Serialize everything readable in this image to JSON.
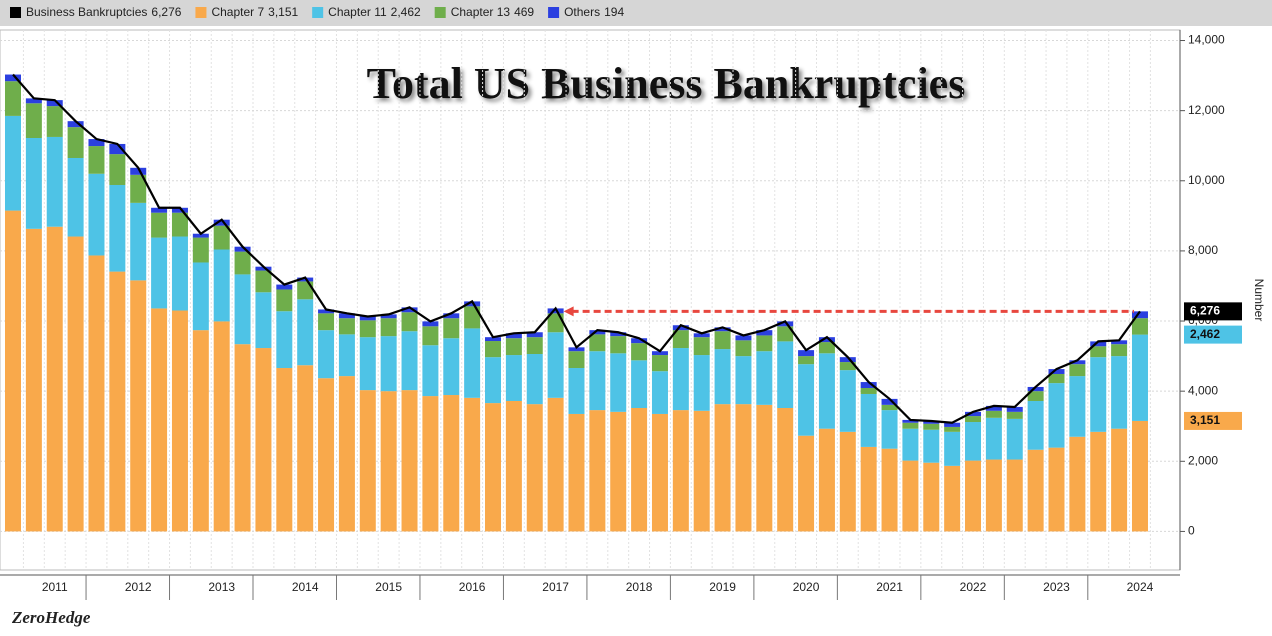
{
  "chart_data": {
    "type": "bar",
    "stacked": true,
    "title": "Total US Business Bankruptcies",
    "y_axis_label": "Number",
    "source": "ZeroHedge",
    "categories": [
      null,
      null,
      "2011",
      null,
      null,
      null,
      "2012",
      null,
      null,
      null,
      "2013",
      null,
      null,
      null,
      "2014",
      null,
      null,
      null,
      "2015",
      null,
      null,
      null,
      "2016",
      null,
      null,
      null,
      "2017",
      null,
      null,
      null,
      "2018",
      null,
      null,
      null,
      "2019",
      null,
      null,
      null,
      "2020",
      null,
      null,
      null,
      "2021",
      null,
      null,
      null,
      "2022",
      null,
      null,
      null,
      "2023",
      null,
      null,
      null,
      "2024"
    ],
    "series": [
      {
        "name": "Business Bankruptcies",
        "kind": "line",
        "color": "#000000",
        "value_label": "6,276",
        "values": [
          13030,
          12350,
          12300,
          11700,
          11190,
          11050,
          10370,
          9230,
          9230,
          8490,
          8890,
          8120,
          7550,
          7040,
          7240,
          6330,
          6220,
          6130,
          6190,
          6390,
          5990,
          6220,
          6560,
          5540,
          5650,
          5680,
          6360,
          5250,
          5740,
          5680,
          5510,
          5140,
          5880,
          5650,
          5820,
          5590,
          5740,
          5990,
          5170,
          5540,
          4970,
          4260,
          3780,
          3180,
          3150,
          3100,
          3410,
          3580,
          3550,
          4120,
          4630,
          4880,
          5420,
          5450,
          6276
        ]
      },
      {
        "name": "Chapter 7",
        "kind": "bar",
        "color": "#f9a94b",
        "value_label": "3,151",
        "values": [
          9150,
          8630,
          8690,
          8410,
          7870,
          7410,
          7160,
          6360,
          6300,
          5740,
          5990,
          5340,
          5230,
          4660,
          4740,
          4370,
          4430,
          4030,
          4000,
          4030,
          3860,
          3890,
          3810,
          3660,
          3720,
          3630,
          3810,
          3350,
          3460,
          3410,
          3520,
          3350,
          3460,
          3440,
          3630,
          3630,
          3610,
          3520,
          2730,
          2930,
          2840,
          2410,
          2360,
          2020,
          1960,
          1870,
          2020,
          2050,
          2050,
          2330,
          2390,
          2700,
          2840,
          2930,
          3151
        ]
      },
      {
        "name": "Chapter 11",
        "kind": "bar",
        "color": "#4ec3e6",
        "value_label": "2,462",
        "values": [
          2700,
          2590,
          2560,
          2240,
          2330,
          2470,
          2210,
          2020,
          2110,
          1930,
          2050,
          1990,
          1590,
          1620,
          1880,
          1370,
          1190,
          1510,
          1570,
          1680,
          1450,
          1620,
          1980,
          1310,
          1310,
          1430,
          1870,
          1310,
          1680,
          1670,
          1360,
          1220,
          1770,
          1590,
          1570,
          1370,
          1530,
          1900,
          2040,
          2150,
          1760,
          1510,
          1100,
          910,
          940,
          970,
          1100,
          1190,
          1160,
          1390,
          1840,
          1730,
          2130,
          2070,
          2462
        ]
      },
      {
        "name": "Chapter 13",
        "kind": "bar",
        "color": "#6fae4b",
        "value_label": "469",
        "values": [
          990,
          990,
          880,
          880,
          790,
          880,
          800,
          710,
          680,
          710,
          680,
          650,
          620,
          620,
          510,
          480,
          460,
          480,
          510,
          540,
          540,
          570,
          630,
          460,
          480,
          480,
          540,
          480,
          480,
          490,
          490,
          460,
          510,
          510,
          510,
          450,
          450,
          430,
          230,
          320,
          230,
          170,
          150,
          170,
          170,
          140,
          170,
          200,
          200,
          280,
          260,
          340,
          310,
          340,
          469
        ]
      },
      {
        "name": "Others",
        "kind": "bar",
        "color": "#2b3fe0",
        "value_label": "194",
        "values": [
          190,
          140,
          170,
          170,
          200,
          290,
          200,
          140,
          140,
          110,
          170,
          140,
          110,
          140,
          110,
          110,
          140,
          110,
          110,
          140,
          140,
          140,
          140,
          110,
          140,
          140,
          140,
          110,
          120,
          110,
          140,
          110,
          140,
          110,
          110,
          140,
          150,
          140,
          170,
          140,
          140,
          170,
          170,
          80,
          80,
          120,
          120,
          140,
          140,
          120,
          140,
          110,
          140,
          110,
          194
        ]
      }
    ],
    "ylim": [
      -1100,
      14300
    ],
    "yticks": [
      0,
      {
        "value": 2000,
        "label": "2,000"
      },
      {
        "value": 4000,
        "label": "4,000"
      },
      {
        "value": 6000,
        "label": "6,000"
      },
      {
        "value": 8000,
        "label": "8,000"
      },
      {
        "value": 10000,
        "label": "10,000"
      },
      {
        "value": 12000,
        "label": "12,000"
      },
      {
        "value": 14000,
        "label": "14,000"
      }
    ],
    "grid": true
  }
}
